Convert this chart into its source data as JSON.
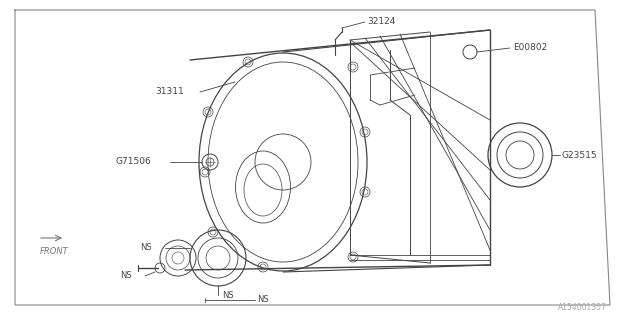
{
  "bg_color": "#ffffff",
  "line_color": "#444444",
  "label_color": "#444444",
  "border_color": "#666666",
  "fig_width": 6.4,
  "fig_height": 3.2,
  "dpi": 100,
  "watermark": "A154001357",
  "front_label": "FRONT",
  "label_31311": "31311",
  "label_32124": "32124",
  "label_E00802": "E00802",
  "label_G71506": "G71506",
  "label_G23515": "G23515",
  "label_NS": "NS"
}
